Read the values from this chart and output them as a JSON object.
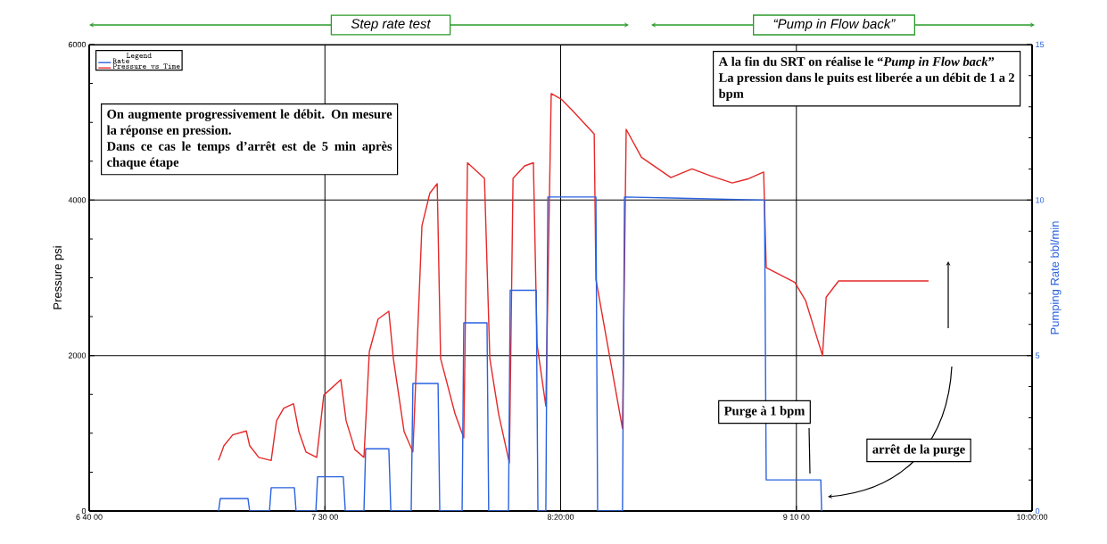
{
  "chart_data": {
    "type": "line",
    "series": [
      {
        "name": "Rate",
        "color": "#2a62e0",
        "axis": "y2",
        "x": [
          7.124,
          7.13,
          7.228,
          7.234,
          7.304,
          7.31,
          7.392,
          7.398,
          7.468,
          7.474,
          7.565,
          7.572,
          7.638,
          7.644,
          7.726,
          7.733,
          7.805,
          7.811,
          7.9,
          7.906,
          7.985,
          7.991,
          8.073,
          8.079,
          8.149,
          8.155,
          8.247,
          8.253,
          8.281,
          8.288,
          8.458,
          8.464,
          8.552,
          8.559,
          9.054,
          9.06,
          9.253,
          9.256
        ],
        "values": [
          0,
          0.4,
          0.4,
          0,
          0,
          0.75,
          0.75,
          0,
          0,
          1.1,
          1.1,
          0,
          0,
          2.0,
          2.0,
          0,
          0,
          4.1,
          4.1,
          0,
          0,
          6.05,
          6.05,
          0,
          0,
          7.1,
          7.1,
          0,
          0,
          10.1,
          10.1,
          0,
          0,
          10.1,
          10.0,
          1.0,
          1.0,
          0
        ]
      },
      {
        "name": "Pressure vs Time",
        "color": "#e62828",
        "x": [
          7.124,
          7.143,
          7.174,
          7.222,
          7.234,
          7.266,
          7.31,
          7.329,
          7.354,
          7.389,
          7.408,
          7.433,
          7.471,
          7.496,
          7.556,
          7.575,
          7.606,
          7.638,
          7.657,
          7.688,
          7.726,
          7.742,
          7.78,
          7.811,
          7.843,
          7.871,
          7.897,
          7.909,
          7.96,
          7.991,
          8.004,
          8.064,
          8.083,
          8.114,
          8.152,
          8.165,
          8.206,
          8.237,
          8.25,
          8.281,
          8.3,
          8.335,
          8.373,
          8.452,
          8.458,
          8.552,
          8.565,
          8.619,
          8.723,
          8.798,
          8.865,
          8.94,
          8.994,
          9.051,
          9.06,
          9.161,
          9.199,
          9.259,
          9.272,
          9.316,
          9.634
        ],
        "values": [
          650,
          840,
          980,
          1030,
          840,
          690,
          650,
          1160,
          1320,
          1380,
          1020,
          760,
          690,
          1490,
          1690,
          1160,
          790,
          690,
          2050,
          2470,
          2570,
          1960,
          1020,
          760,
          3670,
          4090,
          4210,
          1960,
          1250,
          940,
          4480,
          4280,
          1960,
          1250,
          620,
          4280,
          4440,
          4480,
          2140,
          1350,
          5370,
          5300,
          5160,
          4850,
          2980,
          1060,
          4910,
          4550,
          4290,
          4400,
          4310,
          4220,
          4270,
          4360,
          3130,
          2940,
          2710,
          2000,
          2750,
          2960,
          2960
        ]
      }
    ],
    "xlim": [
      6.6667,
      10
    ],
    "xticks": [
      {
        "value": 6.6667,
        "label": "6 40 00"
      },
      {
        "value": 7.5,
        "label": "7 30 00"
      },
      {
        "value": 8.3333,
        "label": "8:20:00"
      },
      {
        "value": 9.1667,
        "label": "9 10 00"
      },
      {
        "value": 10,
        "label": "10:00:00"
      }
    ],
    "ylim": [
      0,
      6000
    ],
    "yticks": [
      0,
      2000,
      4000,
      6000
    ],
    "y2lim": [
      0,
      15
    ],
    "y2ticks": [
      0,
      5,
      10,
      15
    ],
    "ylabel": "Pressure psi",
    "y2label": "Pumping Rate bbl/min",
    "legend_title": "Legend",
    "legend": "top left",
    "grid": true,
    "line_style": "solid",
    "annotations": [
      "Step rate test",
      "“Pump in Flow back”",
      "On augmente progressivement le débit. On mesure la réponse en pression.",
      "Dans ce cas le temps d’arrêt est de 5 min après chaque étape",
      "A la fin du SRT on réalise le “*Pump in Flow back*”",
      "La pression dans le puits est liberée a un débit de 1 a 2 bpm",
      "Purge à 1 bpm",
      "arrêt de la purge"
    ]
  }
}
